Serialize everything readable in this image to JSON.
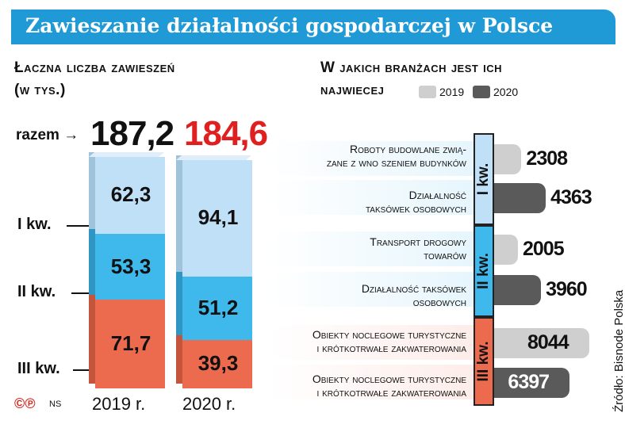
{
  "title": "Zawieszanie działalności gospodarczej w Polsce",
  "left_heading": [
    "Łaczna liczba zawieszeń",
    "(w tys.)"
  ],
  "right_heading": [
    "W jakich branżach jest ich",
    "najwiecej"
  ],
  "total_label": "razem",
  "logo": "©℗",
  "logo_ns": "NS",
  "source": "Źródło: Bisnode Polska",
  "colors": {
    "title_bg": "#1f9ad6",
    "q1": "#bfe0f6",
    "q2": "#3fb8ec",
    "q3": "#ec6a4e",
    "y2019": "#cfcfcf",
    "y2020": "#5a5a5a",
    "total_2020": "#e02020"
  },
  "chart_data": [
    {
      "type": "bar",
      "stacked": true,
      "categories": [
        "2019 r.",
        "2020 r."
      ],
      "totals": [
        "187,2",
        "184,6"
      ],
      "series": [
        {
          "name": "I kw.",
          "values": [
            62.3,
            94.1
          ],
          "labels": [
            "62,3",
            "94,1"
          ]
        },
        {
          "name": "II kw.",
          "values": [
            53.3,
            51.2
          ],
          "labels": [
            "53,3",
            "51,2"
          ]
        },
        {
          "name": "III kw.",
          "values": [
            71.7,
            39.3
          ],
          "labels": [
            "71,7",
            "39,3"
          ]
        }
      ]
    },
    {
      "type": "bar",
      "orientation": "horizontal",
      "legend": [
        "2019",
        "2020"
      ],
      "quarters": [
        "I kw.",
        "II kw.",
        "III kw."
      ],
      "rows": [
        {
          "quarter": 0,
          "category": [
            "Roboty budowlane zwią-",
            "zane z wno szeniem budynków"
          ],
          "year": "2019",
          "value": 2308
        },
        {
          "quarter": 0,
          "category": [
            "Działalność",
            "taksówek osobowych"
          ],
          "year": "2020",
          "value": 4363
        },
        {
          "quarter": 1,
          "category": [
            "Transport drogowy",
            "towarów"
          ],
          "year": "2019",
          "value": 2005
        },
        {
          "quarter": 1,
          "category": [
            "Działalność taksówek",
            "osobowych"
          ],
          "year": "2020",
          "value": 3960
        },
        {
          "quarter": 2,
          "category": [
            "Obiekty noclegowe turystyczne",
            "i krótkotrwałe zakwaterowania"
          ],
          "year": "2019",
          "value": 8044
        },
        {
          "quarter": 2,
          "category": [
            "Obiekty noclegowe turystyczne",
            "i krótkotrwałe zakwaterowania"
          ],
          "year": "2020",
          "value": 6397
        }
      ]
    }
  ]
}
